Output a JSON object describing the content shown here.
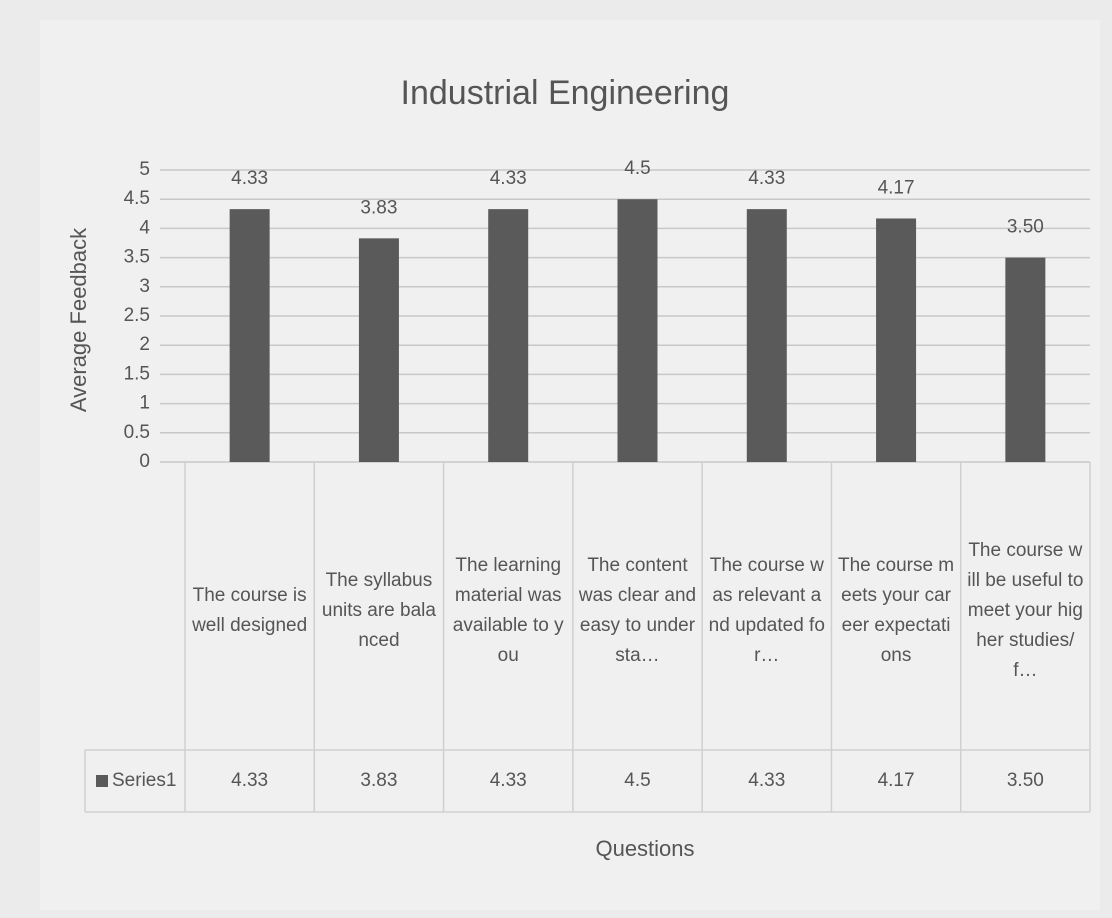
{
  "chart_data": {
    "type": "bar",
    "title": "Industrial Engineering",
    "x_label": "Questions",
    "y_label": "Average Feedback",
    "categories": [
      "The course is well designed",
      "The syllabus units are balanced",
      "The learning material was available to you",
      "The content was clear and easy to understa…",
      "The course was relevant and updated for…",
      "The course meets your career expectations",
      "The course will be useful to meet your higher studies/f…"
    ],
    "series": [
      {
        "name": "Series1",
        "color": "#5a5a5a",
        "values": [
          4.33,
          3.83,
          4.33,
          4.5,
          4.33,
          4.17,
          3.5
        ],
        "value_labels": [
          "4.33",
          "3.83",
          "4.33",
          "4.5",
          "4.33",
          "4.17",
          "3.50"
        ]
      }
    ],
    "ylim": [
      0,
      5
    ],
    "yticks": [
      0,
      0.5,
      1,
      1.5,
      2,
      2.5,
      3,
      3.5,
      4,
      4.5,
      5
    ],
    "grid": true,
    "data_table": true
  }
}
